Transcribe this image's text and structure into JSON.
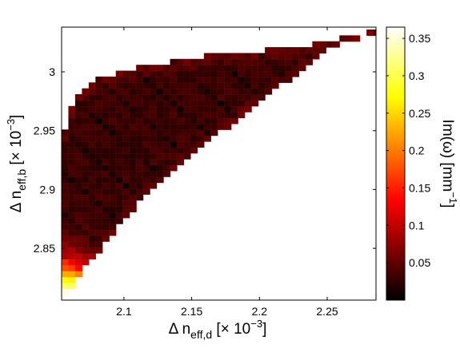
{
  "chart_data": {
    "type": "heatmap",
    "title": "",
    "xlabel": {
      "main": "Δ n",
      "sub": "eff,d",
      "bracket_open": " [× 10",
      "sup": "−3",
      "bracket_close": "]"
    },
    "ylabel": {
      "main": "Δ n",
      "sub": "eff,b",
      "bracket_open": " [× 10",
      "sup": "−3",
      "bracket_close": "]"
    },
    "colorbar_label": {
      "main": "Im(ω) [mm",
      "sup": "−1",
      "close": "]"
    },
    "xlim": [
      2.054,
      2.286
    ],
    "ylim": [
      2.806,
      3.038
    ],
    "clim": [
      0,
      0.365
    ],
    "x_ticks": [
      2.1,
      2.15,
      2.2,
      2.25
    ],
    "x_tick_labels": [
      "2.1",
      "2.15",
      "2.2",
      "2.25"
    ],
    "y_ticks": [
      2.85,
      2.9,
      2.95,
      3.0
    ],
    "y_tick_labels": [
      "2.85",
      "2.9",
      "2.95",
      "3"
    ],
    "colorbar_ticks": [
      0.05,
      0.1,
      0.15,
      0.2,
      0.25,
      0.3,
      0.35
    ],
    "colorbar_tick_labels": [
      "0.05",
      "0.1",
      "0.15",
      "0.2",
      "0.25",
      "0.3",
      "0.35"
    ],
    "colormap": "hot",
    "grid": false,
    "cell_size": [
      0.005,
      0.005
    ],
    "region": {
      "description_of_domain": "filled cells lie between lower and upper boundary curves of y versus x",
      "lower_boundary": {
        "x": [
          2.055,
          2.06,
          2.065,
          2.07,
          2.075,
          2.08,
          2.085,
          2.09,
          2.1,
          2.11,
          2.12,
          2.13,
          2.14,
          2.15,
          2.16,
          2.17,
          2.18,
          2.19,
          2.2,
          2.21,
          2.22,
          2.23,
          2.24,
          2.25,
          2.26,
          2.27,
          2.285
        ],
        "y": [
          2.806,
          2.815,
          2.825,
          2.832,
          2.838,
          2.845,
          2.852,
          2.86,
          2.875,
          2.888,
          2.898,
          2.908,
          2.918,
          2.928,
          2.938,
          2.948,
          2.956,
          2.966,
          2.974,
          2.984,
          2.992,
          3.002,
          3.01,
          3.018,
          3.024,
          3.028,
          3.03
        ]
      },
      "upper_boundary": {
        "x": [
          2.055,
          2.06,
          2.065,
          2.07,
          2.08,
          2.09,
          2.1,
          2.12,
          2.14,
          2.16,
          2.18,
          2.2,
          2.22,
          2.24,
          2.25,
          2.26,
          2.27,
          2.285
        ],
        "y": [
          2.945,
          2.965,
          2.978,
          2.985,
          2.993,
          2.997,
          3.002,
          3.006,
          3.01,
          3.014,
          3.016,
          3.018,
          3.02,
          3.024,
          3.026,
          3.029,
          3.032,
          3.035
        ]
      }
    },
    "value_model": {
      "min_value": 0.0,
      "max_value": 0.365,
      "peak_location": [
        2.055,
        2.806
      ],
      "note": "values highest (≈0.36) at bottom-left corner, dropping to ≈0.03–0.08 across the dark-red interior"
    }
  }
}
